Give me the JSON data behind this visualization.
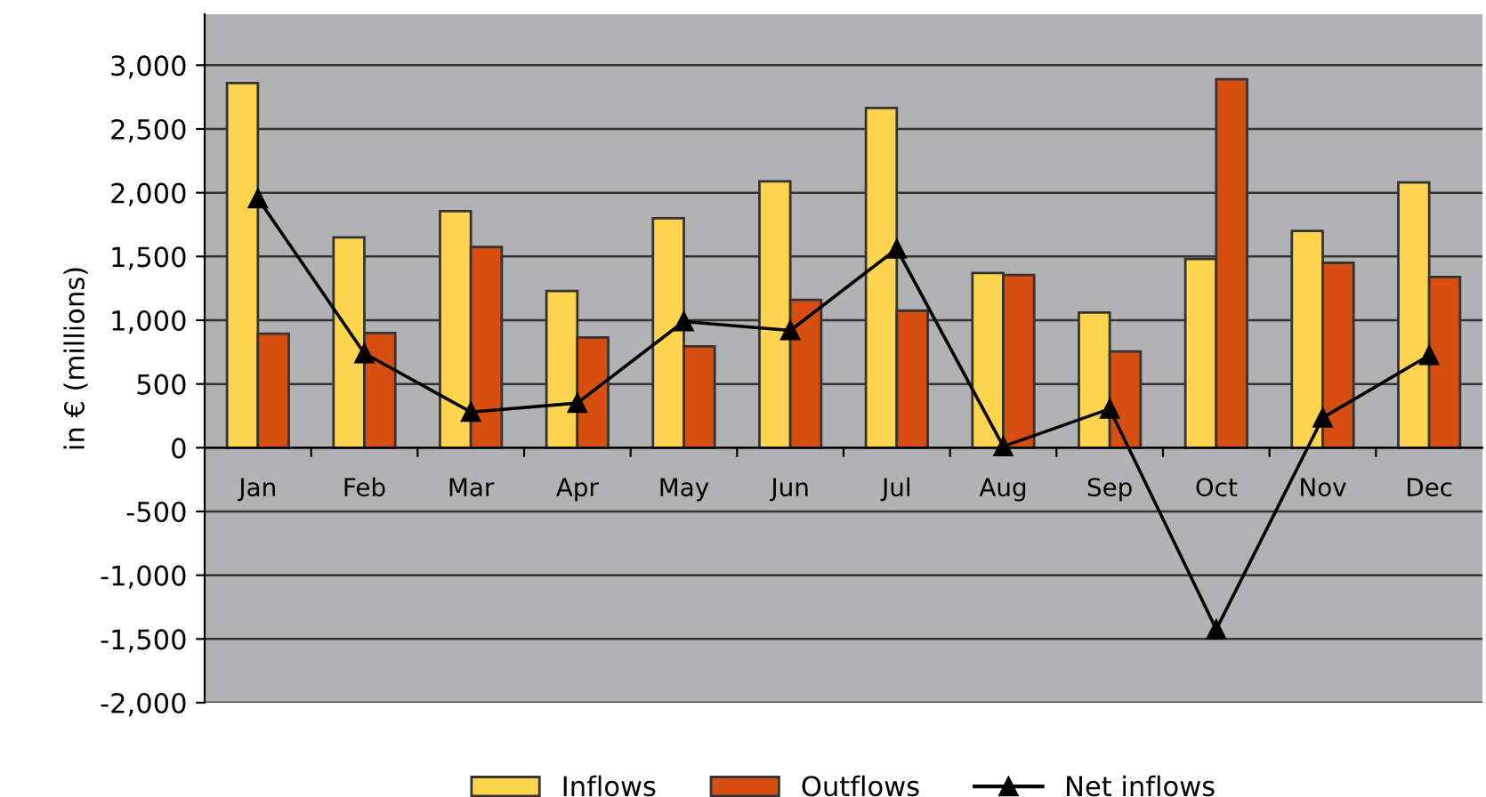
{
  "chart_data": {
    "type": "bar",
    "ylabel": "in € (millions)",
    "categories": [
      "Jan",
      "Feb",
      "Mar",
      "Apr",
      "May",
      "Jun",
      "Jul",
      "Aug",
      "Sep",
      "Oct",
      "Nov",
      "Dec"
    ],
    "series": [
      {
        "name": "Inflows",
        "color": "#ffd54f",
        "values": [
          2860,
          1650,
          1855,
          1230,
          1800,
          2090,
          2665,
          1370,
          1060,
          1480,
          1700,
          2080
        ]
      },
      {
        "name": "Outflows",
        "color": "#d64f10",
        "values": [
          895,
          900,
          1575,
          865,
          795,
          1160,
          1075,
          1355,
          755,
          2890,
          1450,
          1340
        ]
      },
      {
        "name": "Net inflows",
        "type": "line",
        "color": "#000000",
        "marker": "triangle",
        "values": [
          1955,
          740,
          280,
          350,
          990,
          920,
          1560,
          10,
          305,
          -1425,
          235,
          725
        ]
      }
    ],
    "ylim": [
      -2000,
      3400
    ],
    "yticks": [
      {
        "value": -2000,
        "label": "-2,000"
      },
      {
        "value": -1500,
        "label": "-1,500"
      },
      {
        "value": -1000,
        "label": "-1,000"
      },
      {
        "value": -500,
        "label": "-500"
      },
      0,
      500,
      {
        "value": 1000,
        "label": "1,000"
      },
      {
        "value": 1500,
        "label": "1,500"
      },
      {
        "value": 2000,
        "label": "2,000"
      },
      {
        "value": 2500,
        "label": "2,500"
      },
      {
        "value": 3000,
        "label": "3,000"
      }
    ],
    "grid": "y",
    "legend": "bottom"
  }
}
